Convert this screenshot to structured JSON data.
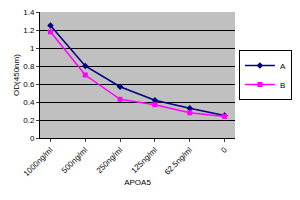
{
  "chart_data": {
    "type": "line",
    "categories": [
      "1000ng/ml",
      "500ng/ml",
      "250ng/ml",
      "125ng/ml",
      "62.5ng/ml",
      "0"
    ],
    "series": [
      {
        "name": "A",
        "color": "#000080",
        "marker": "diamond",
        "values": [
          1.25,
          0.8,
          0.57,
          0.42,
          0.33,
          0.25
        ]
      },
      {
        "name": "B",
        "color": "#ff00ff",
        "marker": "square",
        "values": [
          1.18,
          0.7,
          0.43,
          0.37,
          0.28,
          0.24
        ]
      }
    ],
    "x_label": "APOA5",
    "y_label": "OD(450nm)",
    "ylim": [
      0,
      1.4
    ],
    "yticks": [
      0,
      0.2,
      0.4,
      0.6,
      0.8,
      1,
      1.2,
      1.4
    ],
    "grid": true,
    "legend": "right"
  }
}
